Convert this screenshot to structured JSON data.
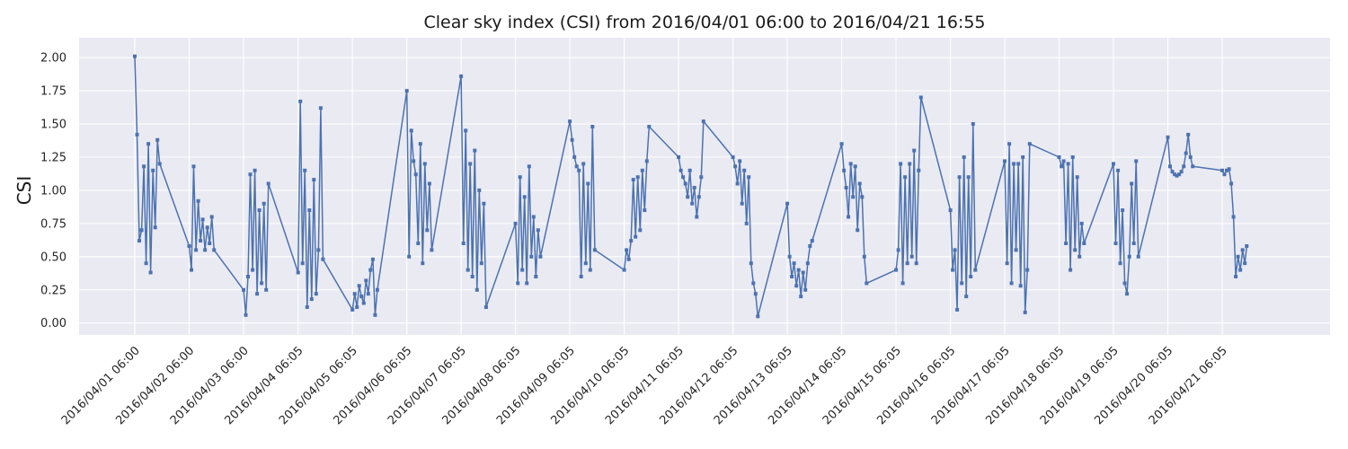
{
  "chart_data": {
    "type": "line",
    "title": "Clear sky index (CSI) from 2016/04/01 06:00 to 2016/04/21 16:55",
    "xlabel": "",
    "ylabel": "CSI",
    "ylim": [
      -0.09,
      2.15
    ],
    "y_ticks": [
      0.0,
      0.25,
      0.5,
      0.75,
      1.0,
      1.25,
      1.5,
      1.75,
      2.0
    ],
    "y_tick_labels": [
      "0.00",
      "0.25",
      "0.50",
      "0.75",
      "1.00",
      "1.25",
      "1.50",
      "1.75",
      "2.00"
    ],
    "x_ticks": [
      "2016/04/01 06:00",
      "2016/04/02 06:00",
      "2016/04/03 06:00",
      "2016/04/04 06:05",
      "2016/04/05 06:05",
      "2016/04/06 06:05",
      "2016/04/07 06:05",
      "2016/04/08 06:05",
      "2016/04/09 06:05",
      "2016/04/10 06:05",
      "2016/04/11 06:05",
      "2016/04/12 06:05",
      "2016/04/13 06:05",
      "2016/04/14 06:05",
      "2016/04/15 06:05",
      "2016/04/16 06:05",
      "2016/04/17 06:05",
      "2016/04/18 06:05",
      "2016/04/19 06:05",
      "2016/04/20 06:05",
      "2016/04/21 06:05"
    ],
    "grid": true,
    "colors": {
      "line": "#4c72b0",
      "plot_bg": "#eaeaf2",
      "grid": "#ffffff"
    },
    "series": [
      {
        "x": [
          "2016/04/01 06:00",
          "2016/04/01 07:00",
          "2016/04/01 08:00",
          "2016/04/01 09:00",
          "2016/04/01 10:00",
          "2016/04/01 11:00",
          "2016/04/01 12:00",
          "2016/04/01 13:00",
          "2016/04/01 14:00",
          "2016/04/01 15:00",
          "2016/04/01 16:00",
          "2016/04/01 17:00",
          "2016/04/02 06:00",
          "2016/04/02 07:00",
          "2016/04/02 08:00",
          "2016/04/02 09:00",
          "2016/04/02 10:00",
          "2016/04/02 11:00",
          "2016/04/02 12:00",
          "2016/04/02 13:00",
          "2016/04/02 14:00",
          "2016/04/02 15:00",
          "2016/04/02 16:00",
          "2016/04/02 17:00",
          "2016/04/03 06:00",
          "2016/04/03 07:00",
          "2016/04/03 08:00",
          "2016/04/03 09:00",
          "2016/04/03 10:00",
          "2016/04/03 11:00",
          "2016/04/03 12:00",
          "2016/04/03 13:00",
          "2016/04/03 14:00",
          "2016/04/03 15:00",
          "2016/04/03 16:00",
          "2016/04/03 17:00",
          "2016/04/04 06:05",
          "2016/04/04 07:05",
          "2016/04/04 08:05",
          "2016/04/04 09:05",
          "2016/04/04 10:05",
          "2016/04/04 11:05",
          "2016/04/04 12:05",
          "2016/04/04 13:05",
          "2016/04/04 14:05",
          "2016/04/04 15:05",
          "2016/04/04 16:05",
          "2016/04/04 17:05",
          "2016/04/05 06:05",
          "2016/04/05 07:05",
          "2016/04/05 08:05",
          "2016/04/05 09:05",
          "2016/04/05 10:05",
          "2016/04/05 11:05",
          "2016/04/05 12:05",
          "2016/04/05 13:05",
          "2016/04/05 14:05",
          "2016/04/05 15:05",
          "2016/04/05 16:05",
          "2016/04/05 17:05",
          "2016/04/06 06:05",
          "2016/04/06 07:05",
          "2016/04/06 08:05",
          "2016/04/06 09:05",
          "2016/04/06 10:05",
          "2016/04/06 11:05",
          "2016/04/06 12:05",
          "2016/04/06 13:05",
          "2016/04/06 14:05",
          "2016/04/06 15:05",
          "2016/04/06 16:05",
          "2016/04/06 17:05",
          "2016/04/07 06:05",
          "2016/04/07 07:05",
          "2016/04/07 08:05",
          "2016/04/07 09:05",
          "2016/04/07 10:05",
          "2016/04/07 11:05",
          "2016/04/07 12:05",
          "2016/04/07 13:05",
          "2016/04/07 14:05",
          "2016/04/07 15:05",
          "2016/04/07 16:05",
          "2016/04/07 17:05",
          "2016/04/08 06:05",
          "2016/04/08 07:05",
          "2016/04/08 08:05",
          "2016/04/08 09:05",
          "2016/04/08 10:05",
          "2016/04/08 11:05",
          "2016/04/08 12:05",
          "2016/04/08 13:05",
          "2016/04/08 14:05",
          "2016/04/08 15:05",
          "2016/04/08 16:05",
          "2016/04/08 17:05",
          "2016/04/09 06:05",
          "2016/04/09 07:05",
          "2016/04/09 08:05",
          "2016/04/09 09:05",
          "2016/04/09 10:05",
          "2016/04/09 11:05",
          "2016/04/09 12:05",
          "2016/04/09 13:05",
          "2016/04/09 14:05",
          "2016/04/09 15:05",
          "2016/04/09 16:05",
          "2016/04/09 17:05",
          "2016/04/10 06:05",
          "2016/04/10 07:05",
          "2016/04/10 08:05",
          "2016/04/10 09:05",
          "2016/04/10 10:05",
          "2016/04/10 11:05",
          "2016/04/10 12:05",
          "2016/04/10 13:05",
          "2016/04/10 14:05",
          "2016/04/10 15:05",
          "2016/04/10 16:05",
          "2016/04/10 17:05",
          "2016/04/11 06:05",
          "2016/04/11 07:05",
          "2016/04/11 08:05",
          "2016/04/11 09:05",
          "2016/04/11 10:05",
          "2016/04/11 11:05",
          "2016/04/11 12:05",
          "2016/04/11 13:05",
          "2016/04/11 14:05",
          "2016/04/11 15:05",
          "2016/04/11 16:05",
          "2016/04/11 17:05",
          "2016/04/12 06:05",
          "2016/04/12 07:05",
          "2016/04/12 08:05",
          "2016/04/12 09:05",
          "2016/04/12 10:05",
          "2016/04/12 11:05",
          "2016/04/12 12:05",
          "2016/04/12 13:05",
          "2016/04/12 14:05",
          "2016/04/12 15:05",
          "2016/04/12 16:05",
          "2016/04/12 17:05",
          "2016/04/13 06:05",
          "2016/04/13 07:05",
          "2016/04/13 08:05",
          "2016/04/13 09:05",
          "2016/04/13 10:05",
          "2016/04/13 11:05",
          "2016/04/13 12:05",
          "2016/04/13 13:05",
          "2016/04/13 14:05",
          "2016/04/13 15:05",
          "2016/04/13 16:05",
          "2016/04/13 17:05",
          "2016/04/14 06:05",
          "2016/04/14 07:05",
          "2016/04/14 08:05",
          "2016/04/14 09:05",
          "2016/04/14 10:05",
          "2016/04/14 11:05",
          "2016/04/14 12:05",
          "2016/04/14 13:05",
          "2016/04/14 14:05",
          "2016/04/14 15:05",
          "2016/04/14 16:05",
          "2016/04/14 17:05",
          "2016/04/15 06:05",
          "2016/04/15 07:05",
          "2016/04/15 08:05",
          "2016/04/15 09:05",
          "2016/04/15 10:05",
          "2016/04/15 11:05",
          "2016/04/15 12:05",
          "2016/04/15 13:05",
          "2016/04/15 14:05",
          "2016/04/15 15:05",
          "2016/04/15 16:05",
          "2016/04/15 17:05",
          "2016/04/16 06:05",
          "2016/04/16 07:05",
          "2016/04/16 08:05",
          "2016/04/16 09:05",
          "2016/04/16 10:05",
          "2016/04/16 11:05",
          "2016/04/16 12:05",
          "2016/04/16 13:05",
          "2016/04/16 14:05",
          "2016/04/16 15:05",
          "2016/04/16 16:05",
          "2016/04/16 17:05",
          "2016/04/17 06:05",
          "2016/04/17 07:05",
          "2016/04/17 08:05",
          "2016/04/17 09:05",
          "2016/04/17 10:05",
          "2016/04/17 11:05",
          "2016/04/17 12:05",
          "2016/04/17 13:05",
          "2016/04/17 14:05",
          "2016/04/17 15:05",
          "2016/04/17 16:05",
          "2016/04/17 17:05",
          "2016/04/18 06:05",
          "2016/04/18 07:05",
          "2016/04/18 08:05",
          "2016/04/18 09:05",
          "2016/04/18 10:05",
          "2016/04/18 11:05",
          "2016/04/18 12:05",
          "2016/04/18 13:05",
          "2016/04/18 14:05",
          "2016/04/18 15:05",
          "2016/04/18 16:05",
          "2016/04/18 17:05",
          "2016/04/19 06:05",
          "2016/04/19 07:05",
          "2016/04/19 08:05",
          "2016/04/19 09:05",
          "2016/04/19 10:05",
          "2016/04/19 11:05",
          "2016/04/19 12:05",
          "2016/04/19 13:05",
          "2016/04/19 14:05",
          "2016/04/19 15:05",
          "2016/04/19 16:05",
          "2016/04/19 17:05",
          "2016/04/20 06:05",
          "2016/04/20 07:05",
          "2016/04/20 08:05",
          "2016/04/20 09:05",
          "2016/04/20 10:05",
          "2016/04/20 11:05",
          "2016/04/20 12:05",
          "2016/04/20 13:05",
          "2016/04/20 14:05",
          "2016/04/20 15:05",
          "2016/04/20 16:05",
          "2016/04/20 17:05",
          "2016/04/21 06:05",
          "2016/04/21 07:05",
          "2016/04/21 08:05",
          "2016/04/21 09:05",
          "2016/04/21 10:05",
          "2016/04/21 11:05",
          "2016/04/21 12:05",
          "2016/04/21 13:05",
          "2016/04/21 14:05",
          "2016/04/21 15:05",
          "2016/04/21 16:05",
          "2016/04/21 16:55"
        ],
        "values": [
          2.01,
          1.42,
          0.62,
          0.7,
          1.18,
          0.45,
          1.35,
          0.38,
          1.15,
          0.72,
          1.38,
          1.2,
          0.58,
          0.4,
          1.18,
          0.55,
          0.92,
          0.62,
          0.78,
          0.55,
          0.72,
          0.6,
          0.8,
          0.55,
          0.25,
          0.06,
          0.35,
          1.12,
          0.4,
          1.15,
          0.22,
          0.85,
          0.3,
          0.9,
          0.25,
          1.05,
          0.38,
          1.67,
          0.45,
          1.15,
          0.12,
          0.85,
          0.18,
          1.08,
          0.22,
          0.55,
          1.62,
          0.48,
          0.1,
          0.22,
          0.12,
          0.28,
          0.2,
          0.15,
          0.32,
          0.22,
          0.4,
          0.48,
          0.06,
          0.25,
          1.75,
          0.5,
          1.45,
          1.22,
          1.12,
          0.6,
          1.35,
          0.45,
          1.2,
          0.7,
          1.05,
          0.55,
          1.86,
          0.6,
          1.45,
          0.4,
          1.2,
          0.35,
          1.3,
          0.25,
          1.0,
          0.45,
          0.9,
          0.12,
          0.75,
          0.3,
          1.1,
          0.4,
          0.95,
          0.3,
          1.18,
          0.5,
          0.8,
          0.35,
          0.7,
          0.5,
          1.52,
          1.38,
          1.25,
          1.18,
          1.15,
          0.35,
          1.2,
          0.45,
          1.05,
          0.4,
          1.48,
          0.55,
          0.4,
          0.55,
          0.48,
          0.62,
          1.08,
          0.65,
          1.1,
          0.7,
          1.15,
          0.85,
          1.22,
          1.48,
          1.25,
          1.15,
          1.1,
          1.05,
          0.95,
          1.15,
          0.9,
          1.02,
          0.8,
          0.95,
          1.1,
          1.52,
          1.25,
          1.18,
          1.05,
          1.22,
          0.9,
          1.15,
          0.75,
          1.1,
          0.45,
          0.3,
          0.22,
          0.05,
          0.9,
          0.5,
          0.35,
          0.45,
          0.28,
          0.4,
          0.2,
          0.38,
          0.25,
          0.45,
          0.58,
          0.62,
          1.35,
          1.15,
          1.02,
          0.8,
          1.2,
          0.95,
          1.18,
          0.7,
          1.05,
          0.95,
          0.5,
          0.3,
          0.4,
          0.55,
          1.2,
          0.3,
          1.1,
          0.45,
          1.2,
          0.5,
          1.3,
          0.45,
          1.15,
          1.7,
          0.85,
          0.4,
          0.55,
          0.1,
          1.1,
          0.3,
          1.25,
          0.2,
          1.1,
          0.35,
          1.5,
          0.4,
          1.22,
          0.45,
          1.35,
          0.3,
          1.2,
          0.55,
          1.2,
          0.28,
          1.25,
          0.08,
          0.4,
          1.35,
          1.25,
          1.18,
          1.22,
          0.6,
          1.2,
          0.4,
          1.25,
          0.55,
          1.1,
          0.5,
          0.75,
          0.6,
          1.2,
          0.6,
          1.15,
          0.45,
          0.85,
          0.3,
          0.22,
          0.5,
          1.05,
          0.6,
          1.22,
          0.5,
          1.4,
          1.18,
          1.14,
          1.12,
          1.11,
          1.12,
          1.14,
          1.18,
          1.28,
          1.42,
          1.25,
          1.18,
          1.15,
          1.12,
          1.15,
          1.16,
          1.05,
          0.8,
          0.35,
          0.5,
          0.4,
          0.55,
          0.45,
          0.58
        ]
      }
    ]
  }
}
